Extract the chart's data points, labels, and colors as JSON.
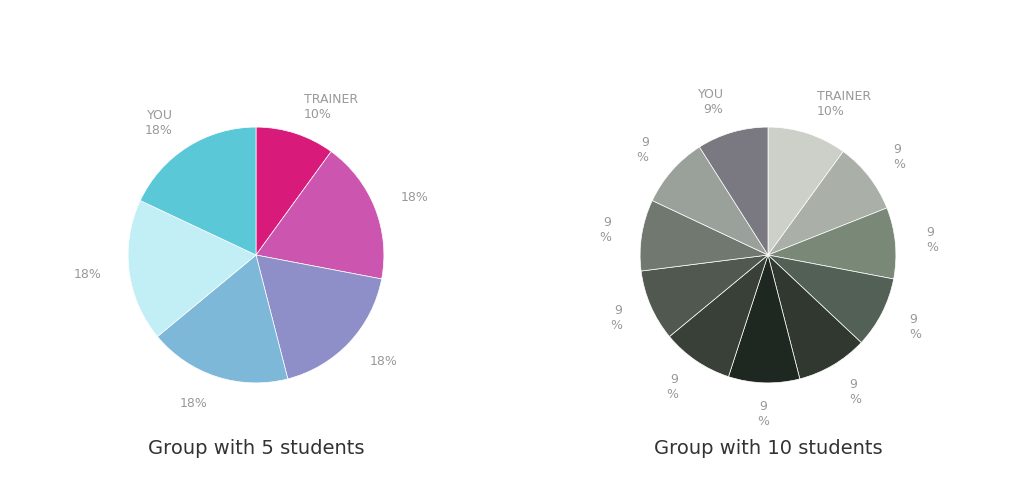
{
  "chart1": {
    "title": "Group with 5 students",
    "slices": [
      10,
      18,
      18,
      18,
      18,
      18
    ],
    "colors": [
      "#d81b7a",
      "#cc55b0",
      "#8e8ec8",
      "#7eb8d8",
      "#c2eef5",
      "#5bc8d8"
    ],
    "startangle": 90,
    "label_texts": [
      "TRAINER\n10%",
      "18%",
      "18%",
      "18%",
      "18%",
      "YOU\n18%"
    ]
  },
  "chart2": {
    "title": "Group with 10 students",
    "slices": [
      10,
      9,
      9,
      9,
      9,
      9,
      9,
      9,
      9,
      9,
      9
    ],
    "colors": [
      "#c8cfc0",
      "#9eada0",
      "#6e8070",
      "#475a4a",
      "#252e25",
      "#303830",
      "#505850",
      "#6e786e",
      "#9aaa9a",
      "#bdc8bd",
      "#7a7a82"
    ],
    "startangle": 90,
    "label_texts": [
      "TRAINER\n10%",
      "9\n%",
      "9\n%",
      "9\n%",
      "9\n%",
      "9\n%",
      "9\n%",
      "9\n%",
      "9\n%",
      "9\n%",
      "YOU\n9%"
    ]
  },
  "background_color": "#ffffff",
  "title_fontsize": 14,
  "label_fontsize": 9,
  "label_color": "#999999"
}
